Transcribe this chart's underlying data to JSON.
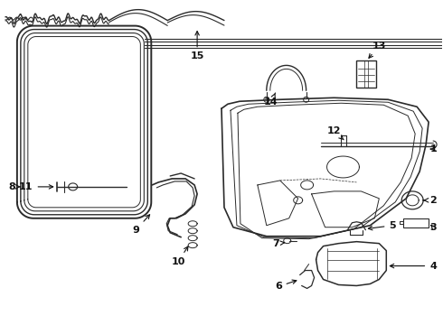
{
  "bg_color": "#ffffff",
  "fig_width": 4.9,
  "fig_height": 3.6,
  "dpi": 100,
  "line_color": "#2a2a2a",
  "label_color": "#111111"
}
